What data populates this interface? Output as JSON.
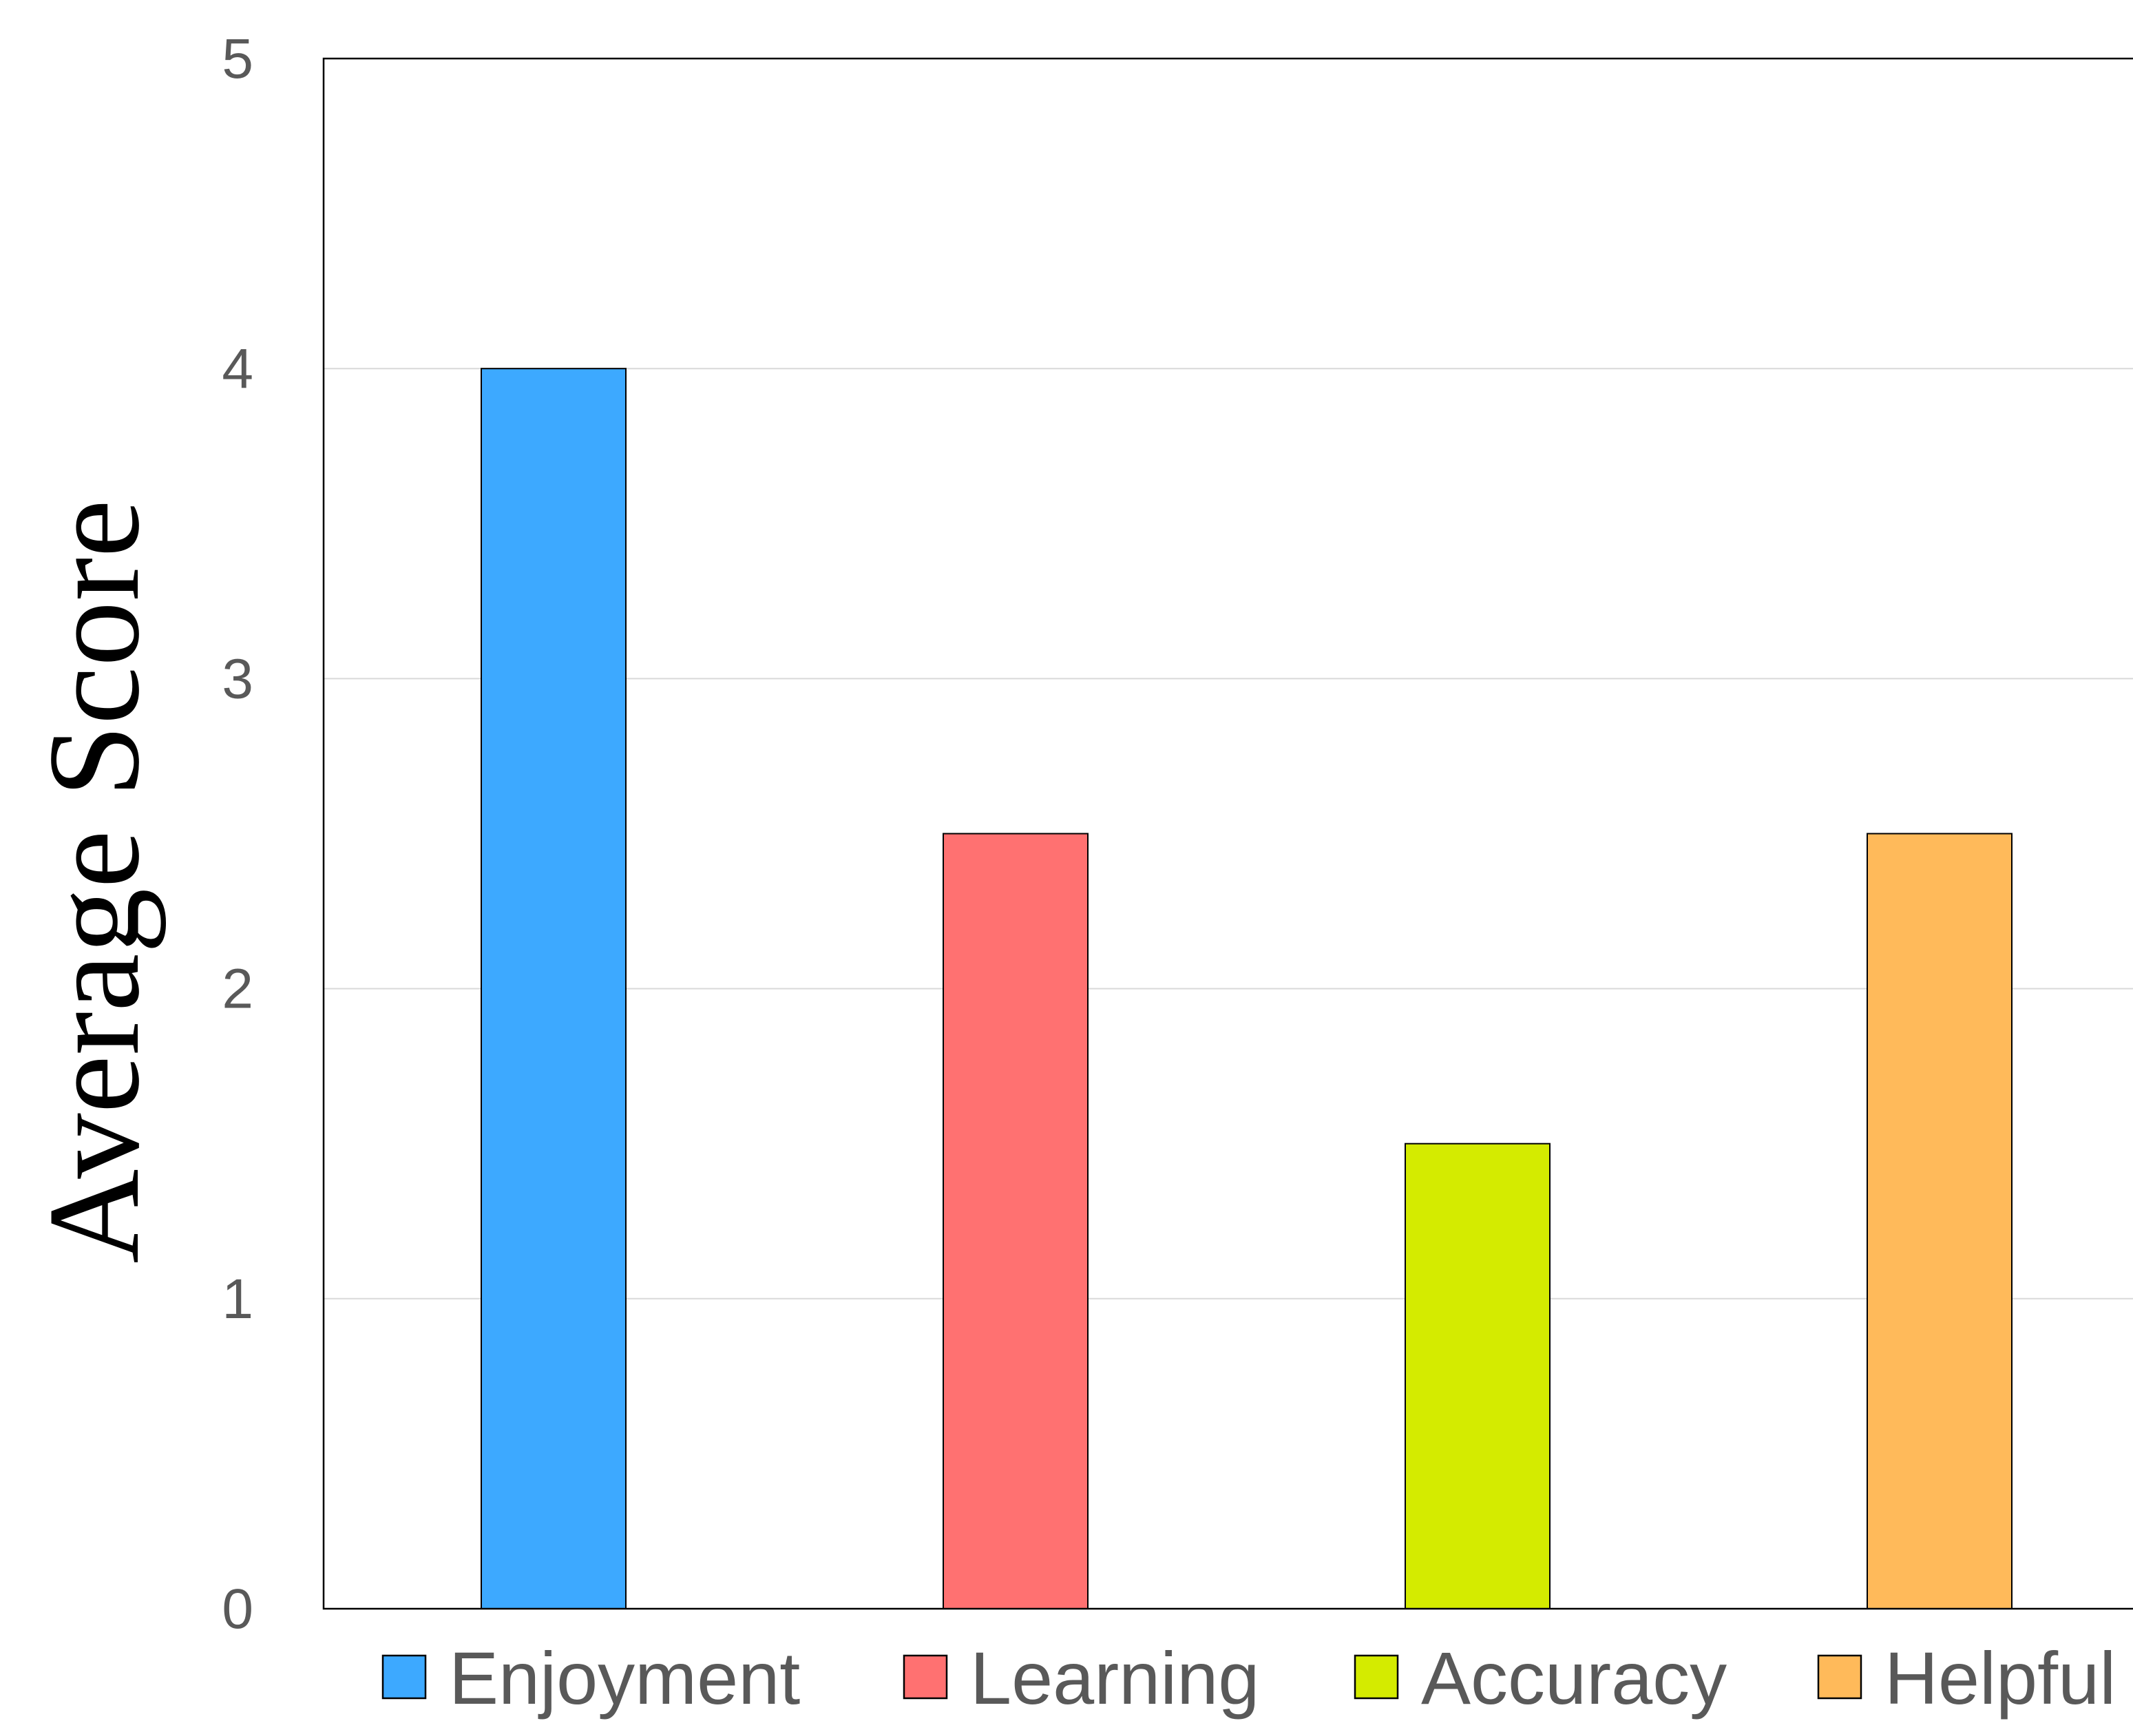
{
  "chart_data": {
    "type": "bar",
    "title": "",
    "xlabel": "",
    "ylabel": "Average Score",
    "ylim": [
      0,
      5
    ],
    "yticks": [
      0,
      1,
      2,
      3,
      4,
      5
    ],
    "grid": true,
    "legend_position": "bottom",
    "categories": [
      "Enjoyment",
      "Learning",
      "Accuracy",
      "Helpful"
    ],
    "values": [
      4.0,
      2.5,
      1.5,
      2.5
    ],
    "colors": [
      "#3DA9FF",
      "#FF7171",
      "#D4EB00",
      "#FFBA5A"
    ]
  }
}
